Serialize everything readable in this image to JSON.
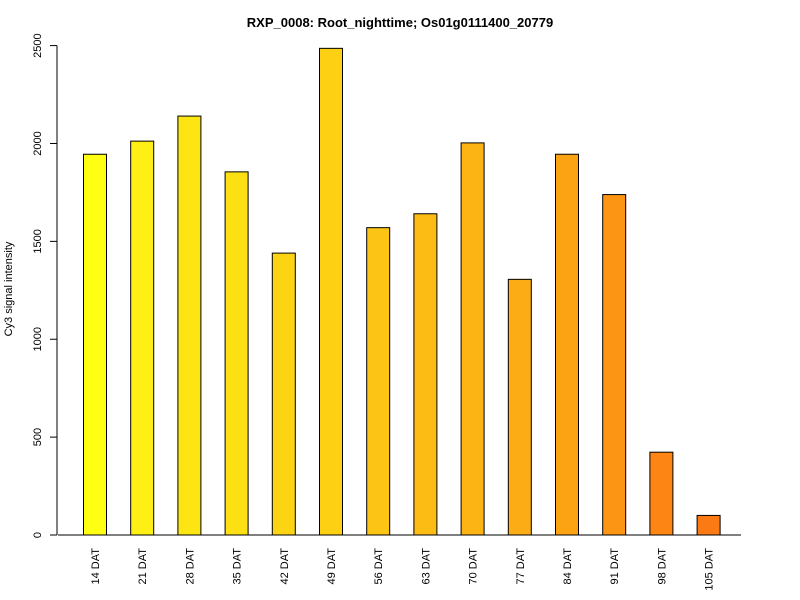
{
  "chart_data": {
    "type": "bar",
    "title": "RXP_0008: Root_nighttime; Os01g0111400_20779",
    "xlabel": "",
    "ylabel": "Cy3 signal intensity",
    "categories": [
      "14 DAT",
      "21 DAT",
      "28 DAT",
      "35 DAT",
      "42 DAT",
      "49 DAT",
      "56 DAT",
      "63 DAT",
      "70 DAT",
      "77 DAT",
      "84 DAT",
      "91 DAT",
      "98 DAT",
      "105 DAT"
    ],
    "values": [
      1945,
      2012,
      2140,
      1855,
      1440,
      2486,
      1570,
      1641,
      2003,
      1306,
      1945,
      1739,
      423,
      100
    ],
    "colors": [
      "#ffff14",
      "#fef014",
      "#fde514",
      "#fde014",
      "#fdd414",
      "#fed014",
      "#fcc414",
      "#fdbc14",
      "#fcb414",
      "#fcac14",
      "#fca314",
      "#fc9414",
      "#fc8514",
      "#fc7a14"
    ],
    "ylim": [
      0,
      2500
    ],
    "yticks": [
      0,
      500,
      1000,
      1500,
      2000,
      2500
    ],
    "grid": false,
    "legend": "none"
  }
}
